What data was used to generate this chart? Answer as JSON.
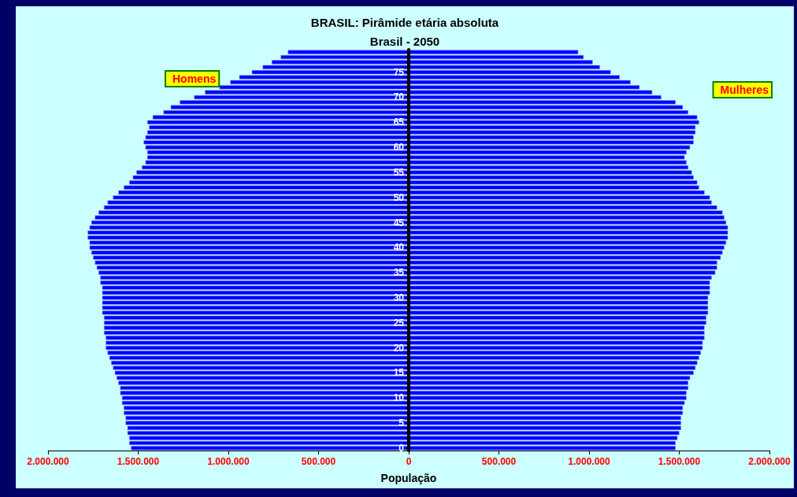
{
  "chart_data": {
    "type": "bar",
    "orientation": "horizontal",
    "title": "BRASIL: Pirâmide etária absoluta",
    "subtitle": "Brasil - 2050",
    "xlabel": "População",
    "categories": [
      null,
      null,
      null,
      null,
      "75",
      null,
      null,
      null,
      null,
      "70",
      null,
      null,
      null,
      null,
      "65",
      null,
      null,
      null,
      null,
      "60",
      null,
      null,
      null,
      null,
      "55",
      null,
      null,
      null,
      null,
      "50",
      null,
      null,
      null,
      null,
      "45",
      null,
      null,
      null,
      null,
      "40",
      null,
      null,
      null,
      null,
      "35",
      null,
      null,
      null,
      null,
      "30",
      null,
      null,
      null,
      null,
      "25",
      null,
      null,
      null,
      null,
      "20",
      null,
      null,
      null,
      null,
      "15",
      null,
      null,
      null,
      null,
      "10",
      null,
      null,
      null,
      null,
      "5",
      null,
      null,
      null,
      null,
      "0"
    ],
    "series": [
      {
        "name": "Homens",
        "color": "#0000ff",
        "values": [
          -670000,
          -710000,
          -760000,
          -810000,
          -870000,
          -940000,
          -990000,
          -1050000,
          -1130000,
          -1190000,
          -1270000,
          -1320000,
          -1360000,
          -1420000,
          -1450000,
          -1440000,
          -1450000,
          -1460000,
          -1470000,
          -1460000,
          -1450000,
          -1450000,
          -1460000,
          -1480000,
          -1510000,
          -1530000,
          -1550000,
          -1580000,
          -1610000,
          -1640000,
          -1670000,
          -1690000,
          -1720000,
          -1740000,
          -1760000,
          -1770000,
          -1780000,
          -1780000,
          -1770000,
          -1770000,
          -1760000,
          -1750000,
          -1740000,
          -1730000,
          -1720000,
          -1710000,
          -1710000,
          -1700000,
          -1700000,
          -1700000,
          -1700000,
          -1700000,
          -1700000,
          -1690000,
          -1690000,
          -1690000,
          -1690000,
          -1680000,
          -1680000,
          -1680000,
          -1670000,
          -1660000,
          -1650000,
          -1640000,
          -1630000,
          -1620000,
          -1610000,
          -1600000,
          -1600000,
          -1590000,
          -1590000,
          -1580000,
          -1580000,
          -1570000,
          -1570000,
          -1560000,
          -1560000,
          -1550000,
          -1550000,
          -1540000
        ]
      },
      {
        "name": "Mulheres",
        "color": "#0000ff",
        "values": [
          940000,
          970000,
          1020000,
          1060000,
          1120000,
          1170000,
          1230000,
          1280000,
          1350000,
          1400000,
          1480000,
          1520000,
          1550000,
          1600000,
          1610000,
          1590000,
          1590000,
          1580000,
          1580000,
          1560000,
          1540000,
          1530000,
          1540000,
          1550000,
          1570000,
          1580000,
          1600000,
          1610000,
          1640000,
          1670000,
          1680000,
          1710000,
          1740000,
          1750000,
          1760000,
          1770000,
          1770000,
          1770000,
          1760000,
          1750000,
          1740000,
          1730000,
          1710000,
          1710000,
          1700000,
          1680000,
          1670000,
          1670000,
          1670000,
          1660000,
          1660000,
          1660000,
          1660000,
          1650000,
          1650000,
          1640000,
          1640000,
          1640000,
          1630000,
          1630000,
          1620000,
          1610000,
          1600000,
          1590000,
          1580000,
          1560000,
          1550000,
          1550000,
          1540000,
          1540000,
          1530000,
          1520000,
          1520000,
          1510000,
          1510000,
          1510000,
          1500000,
          1490000,
          1480000,
          1480000
        ]
      }
    ],
    "xlim": [
      -2000000,
      2000000
    ],
    "xticks": [
      {
        "value": -2000000,
        "label": "2.000.000"
      },
      {
        "value": -1500000,
        "label": "1.500.000"
      },
      {
        "value": -1000000,
        "label": "1.000.000"
      },
      {
        "value": -500000,
        "label": "500.000"
      },
      0,
      {
        "value": 500000,
        "label": "500.000"
      },
      {
        "value": 1000000,
        "label": "1.000.000"
      },
      {
        "value": 1500000,
        "label": "1.500.000"
      },
      {
        "value": 2000000,
        "label": "2.000.000"
      }
    ],
    "grid": false,
    "stacked": true,
    "legend": "top"
  }
}
